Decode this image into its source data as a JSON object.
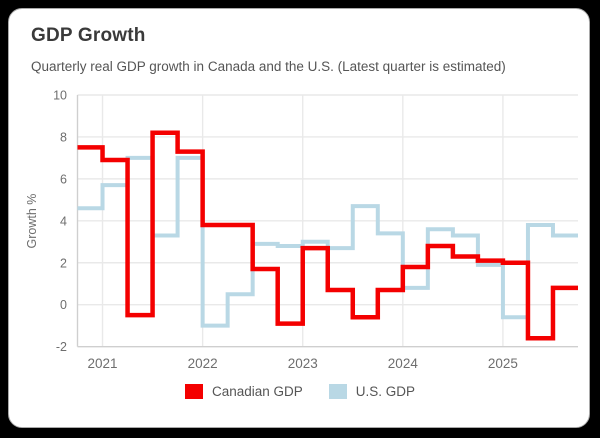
{
  "card": {
    "title": "GDP Growth",
    "subtitle": "Quarterly real GDP growth in Canada and the U.S. (Latest quarter is estimated)"
  },
  "chart_data": {
    "type": "line",
    "style": "step",
    "title": "GDP Growth",
    "subtitle": "Quarterly real GDP growth in Canada and the U.S. (Latest quarter is estimated)",
    "xlabel": "",
    "ylabel": "Growth %",
    "ylim": [
      -2,
      10
    ],
    "yticks": [
      -2,
      0,
      2,
      4,
      6,
      8,
      10
    ],
    "xticks": [
      "2021",
      "2022",
      "2023",
      "2024",
      "2025"
    ],
    "grid": true,
    "legend_position": "bottom",
    "x": [
      "2020Q4",
      "2021Q1",
      "2021Q2",
      "2021Q3",
      "2021Q4",
      "2022Q1",
      "2022Q2",
      "2022Q3",
      "2022Q4",
      "2023Q1",
      "2023Q2",
      "2023Q3",
      "2023Q4",
      "2024Q1",
      "2024Q2",
      "2024Q3",
      "2024Q4",
      "2025Q1",
      "2025Q2",
      "2025Q3"
    ],
    "series": [
      {
        "name": "Canadian GDP",
        "color": "#f40000",
        "values": [
          7.5,
          6.9,
          -0.5,
          8.2,
          7.3,
          3.8,
          3.8,
          1.7,
          -0.9,
          2.7,
          0.7,
          -0.6,
          0.7,
          1.8,
          2.8,
          2.3,
          2.1,
          2.0,
          -1.6,
          0.8
        ]
      },
      {
        "name": "U.S. GDP",
        "color": "#b9d8e5",
        "values": [
          4.6,
          5.7,
          7.0,
          3.3,
          7.0,
          -1.0,
          0.5,
          2.9,
          2.8,
          3.0,
          2.7,
          4.7,
          3.4,
          0.8,
          3.6,
          3.3,
          1.9,
          -0.6,
          3.8,
          3.3
        ]
      }
    ],
    "colors": {
      "gridline": "#e9e9e9",
      "axis": "#cfcfcf",
      "tick_text": "#6e6e6e",
      "title_text": "#3a3a3a",
      "subtitle_text": "#555555"
    }
  }
}
